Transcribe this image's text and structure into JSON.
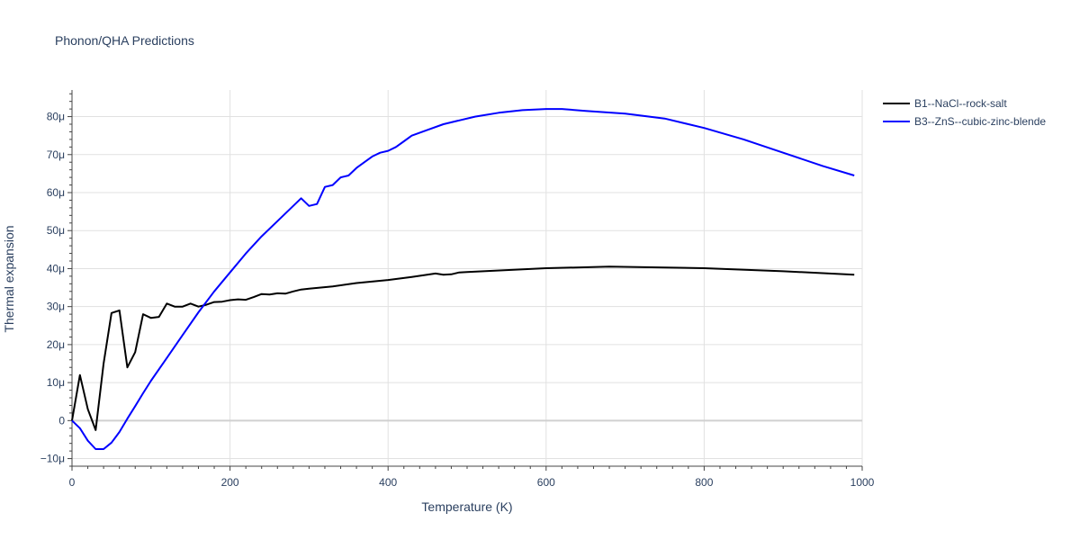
{
  "chart_data": {
    "type": "line",
    "title": "Phonon/QHA Predictions",
    "xlabel": "Temperature (K)",
    "ylabel": "Thermal expansion",
    "xlim": [
      0,
      1000
    ],
    "ylim": [
      -12,
      87
    ],
    "x_ticks": [
      0,
      200,
      400,
      600,
      800,
      1000
    ],
    "y_ticks": [
      -10,
      0,
      10,
      20,
      30,
      40,
      50,
      60,
      70,
      80
    ],
    "y_tick_labels": [
      "−10μ",
      "0",
      "10μ",
      "20μ",
      "30μ",
      "40μ",
      "50μ",
      "60μ",
      "70μ",
      "80μ"
    ],
    "grid": true,
    "legend_position": "top-right",
    "series": [
      {
        "name": "B1--NaCl--rock-salt",
        "color": "#000000",
        "x": [
          0,
          10,
          20,
          30,
          40,
          50,
          60,
          70,
          80,
          90,
          100,
          110,
          120,
          130,
          140,
          150,
          160,
          170,
          180,
          190,
          200,
          210,
          220,
          230,
          240,
          250,
          260,
          270,
          280,
          290,
          300,
          330,
          360,
          400,
          430,
          460,
          470,
          480,
          490,
          500,
          550,
          600,
          680,
          800,
          900,
          990
        ],
        "y": [
          0,
          12,
          3,
          -2.5,
          15,
          28.3,
          29,
          14,
          18,
          28,
          27,
          27.3,
          30.8,
          30,
          30,
          30.8,
          30,
          30.5,
          31.2,
          31.3,
          31.7,
          31.9,
          31.8,
          32.5,
          33.3,
          33.2,
          33.5,
          33.4,
          34,
          34.5,
          34.7,
          35.3,
          36.2,
          37,
          37.8,
          38.7,
          38.4,
          38.5,
          39,
          39.1,
          39.6,
          40.1,
          40.5,
          40.1,
          39.3,
          38.4
        ]
      },
      {
        "name": "B3--ZnS--cubic-zinc-blende",
        "color": "#0000ff",
        "x": [
          0,
          10,
          20,
          30,
          40,
          50,
          60,
          70,
          80,
          90,
          100,
          120,
          140,
          160,
          180,
          200,
          220,
          240,
          260,
          270,
          280,
          290,
          300,
          310,
          320,
          330,
          340,
          350,
          360,
          370,
          380,
          390,
          400,
          410,
          420,
          430,
          450,
          470,
          490,
          510,
          540,
          570,
          600,
          620,
          650,
          700,
          750,
          800,
          850,
          900,
          950,
          990
        ],
        "y": [
          0,
          -2,
          -5.3,
          -7.5,
          -7.5,
          -5.8,
          -3,
          0.5,
          3.8,
          7.2,
          10.5,
          16.5,
          22.5,
          28.5,
          34,
          39,
          44,
          48.5,
          52.5,
          54.5,
          56.5,
          58.5,
          56.5,
          57,
          61.5,
          62,
          64,
          64.5,
          66.5,
          68,
          69.5,
          70.5,
          71,
          72,
          73.5,
          75,
          76.5,
          78,
          79,
          80,
          81,
          81.7,
          82,
          82,
          81.5,
          80.8,
          79.5,
          77,
          74,
          70.5,
          67,
          64.5
        ]
      }
    ]
  }
}
